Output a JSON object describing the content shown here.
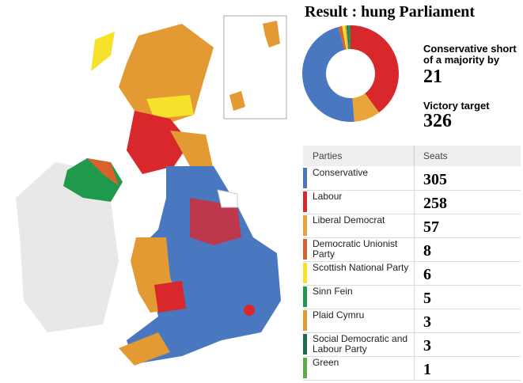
{
  "header": {
    "title": "Result : hung Parliament"
  },
  "summary": {
    "short_label": "Conservative short of a majority by",
    "short_value": "21",
    "target_label": "Victory target",
    "target_value": "326"
  },
  "table": {
    "columns": [
      "Parties",
      "Seats"
    ],
    "rows": [
      {
        "party": "Conservative",
        "seats": 305,
        "color": "#4a78c0"
      },
      {
        "party": "Labour",
        "seats": 258,
        "color": "#d8282c"
      },
      {
        "party": "Liberal Democrat",
        "seats": 57,
        "color": "#e9a43a"
      },
      {
        "party": "Democratic Unionist Party",
        "seats": 8,
        "color": "#d9612b"
      },
      {
        "party": "Scottish National Party",
        "seats": 6,
        "color": "#f6e12b"
      },
      {
        "party": "Sinn Fein",
        "seats": 5,
        "color": "#1f9a4c"
      },
      {
        "party": "Plaid Cymru",
        "seats": 3,
        "color": "#e39a32"
      },
      {
        "party": "Social Democratic and Labour Party",
        "seats": 3,
        "color": "#1f6b52"
      },
      {
        "party": "Green",
        "seats": 1,
        "color": "#5aab46"
      }
    ]
  }
}
